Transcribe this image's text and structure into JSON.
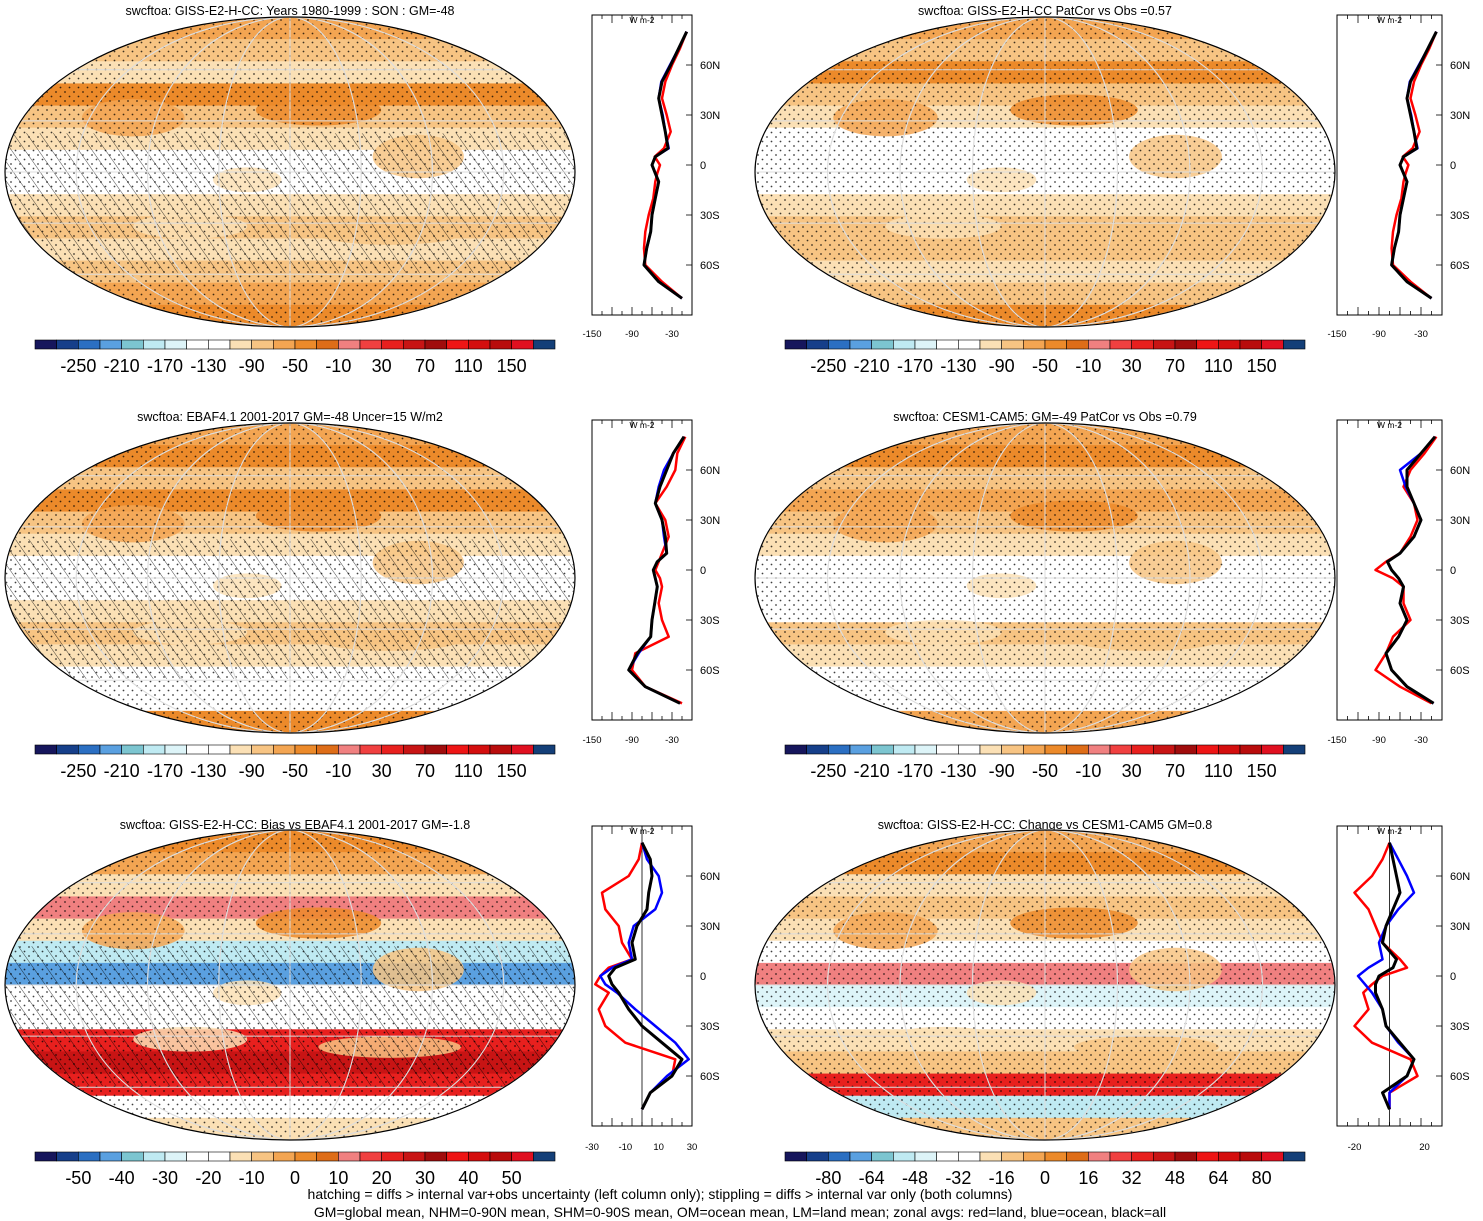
{
  "chart_data": [
    {
      "type": "heatmap",
      "title": "swcftoa: GISS-E2-H-CC: Years 1980-1999 : SON : GM=-48",
      "colorbar_labels": [
        "-250",
        "-210",
        "-170",
        "-130",
        "-90",
        "-50",
        "-10",
        "30",
        "70",
        "110",
        "150"
      ],
      "colorbar_range": [
        -250,
        150
      ],
      "hatching": true,
      "stippling": true,
      "zonal": {
        "unit": "W m-2",
        "x_ticks": [
          "-150",
          "-90",
          "-30"
        ],
        "xlim": [
          -150,
          0
        ],
        "y_ticks": [
          "60N",
          "30N",
          "0",
          "30S",
          "60S"
        ],
        "lat": [
          80,
          70,
          60,
          50,
          40,
          30,
          20,
          10,
          5,
          0,
          -5,
          -10,
          -20,
          -30,
          -40,
          -50,
          -60,
          -70,
          -80
        ],
        "series": [
          {
            "name": "land",
            "color": "#ff0000",
            "values": [
              -8,
              -18,
              -30,
              -40,
              -45,
              -38,
              -32,
              -42,
              -56,
              -48,
              -52,
              -55,
              -58,
              -65,
              -70,
              -72,
              -70,
              -45,
              -15
            ]
          },
          {
            "name": "ocean",
            "color": "#0000ff",
            "values": [
              -8,
              -20,
              -33,
              -46,
              -50,
              -44,
              -40,
              -35,
              -55,
              -60,
              -55,
              -50,
              -55,
              -60,
              -62,
              -68,
              -72,
              -50,
              -15
            ]
          },
          {
            "name": "all",
            "color": "#000000",
            "values": [
              -8,
              -20,
              -32,
              -45,
              -50,
              -45,
              -40,
              -36,
              -55,
              -60,
              -55,
              -50,
              -55,
              -60,
              -62,
              -68,
              -72,
              -50,
              -15
            ]
          }
        ]
      }
    },
    {
      "type": "heatmap",
      "title": "swcftoa: GISS-E2-H-CC PatCor vs Obs =0.57",
      "colorbar_labels": [
        "-250",
        "-210",
        "-170",
        "-130",
        "-90",
        "-50",
        "-10",
        "30",
        "70",
        "110",
        "150"
      ],
      "colorbar_range": [
        -250,
        150
      ],
      "hatching": false,
      "stippling": true,
      "zonal": {
        "unit": "W m-2",
        "x_ticks": [
          "-150",
          "-90",
          "-30"
        ],
        "xlim": [
          -150,
          0
        ],
        "y_ticks": [
          "60N",
          "30N",
          "0",
          "30S",
          "60S"
        ],
        "lat": [
          80,
          70,
          60,
          50,
          40,
          30,
          20,
          10,
          5,
          0,
          -5,
          -10,
          -20,
          -30,
          -40,
          -50,
          -60,
          -70,
          -80
        ],
        "series": [
          {
            "name": "land",
            "color": "#ff0000",
            "values": [
              -8,
              -18,
              -30,
              -40,
              -45,
              -38,
              -32,
              -42,
              -56,
              -48,
              -52,
              -55,
              -58,
              -65,
              -70,
              -72,
              -70,
              -45,
              -15
            ]
          },
          {
            "name": "ocean",
            "color": "#0000ff",
            "values": [
              -8,
              -20,
              -33,
              -46,
              -50,
              -44,
              -40,
              -35,
              -55,
              -60,
              -55,
              -50,
              -55,
              -60,
              -62,
              -68,
              -72,
              -50,
              -15
            ]
          },
          {
            "name": "all",
            "color": "#000000",
            "values": [
              -8,
              -20,
              -32,
              -45,
              -50,
              -45,
              -40,
              -36,
              -55,
              -60,
              -55,
              -50,
              -55,
              -60,
              -62,
              -68,
              -72,
              -50,
              -15
            ]
          }
        ]
      }
    },
    {
      "type": "heatmap",
      "title": "swcftoa: EBAF4.1 2001-2017 GM=-48 Uncer=15 W/m2",
      "colorbar_labels": [
        "-250",
        "-210",
        "-170",
        "-130",
        "-90",
        "-50",
        "-10",
        "30",
        "70",
        "110",
        "150"
      ],
      "colorbar_range": [
        -250,
        150
      ],
      "hatching": true,
      "stippling": true,
      "zonal": {
        "unit": "W m-2",
        "x_ticks": [
          "-150",
          "-90",
          "-30"
        ],
        "xlim": [
          -150,
          0
        ],
        "y_ticks": [
          "60N",
          "30N",
          "0",
          "30S",
          "60S"
        ],
        "lat": [
          80,
          70,
          60,
          50,
          40,
          30,
          20,
          10,
          5,
          0,
          -5,
          -10,
          -20,
          -30,
          -40,
          -50,
          -60,
          -70,
          -80
        ],
        "series": [
          {
            "name": "land",
            "color": "#ff0000",
            "values": [
              -10,
              -22,
              -25,
              -38,
              -55,
              -40,
              -35,
              -45,
              -50,
              -55,
              -48,
              -45,
              -50,
              -45,
              -35,
              -85,
              -90,
              -70,
              -15
            ]
          },
          {
            "name": "ocean",
            "color": "#0000ff",
            "values": [
              -12,
              -28,
              -42,
              -50,
              -55,
              -45,
              -42,
              -38,
              -52,
              -58,
              -55,
              -52,
              -56,
              -60,
              -62,
              -80,
              -95,
              -70,
              -18
            ]
          },
          {
            "name": "all",
            "color": "#000000",
            "values": [
              -12,
              -28,
              -38,
              -48,
              -55,
              -45,
              -40,
              -38,
              -52,
              -58,
              -55,
              -52,
              -56,
              -60,
              -62,
              -82,
              -95,
              -70,
              -18
            ]
          }
        ]
      }
    },
    {
      "type": "heatmap",
      "title": "swcftoa: CESM1-CAM5: GM=-49 PatCor vs Obs =0.79",
      "colorbar_labels": [
        "-250",
        "-210",
        "-170",
        "-130",
        "-90",
        "-50",
        "-10",
        "30",
        "70",
        "110",
        "150"
      ],
      "colorbar_range": [
        -250,
        150
      ],
      "hatching": false,
      "stippling": true,
      "zonal": {
        "unit": "W m-2",
        "x_ticks": [
          "-150",
          "-90",
          "-30"
        ],
        "xlim": [
          -150,
          0
        ],
        "y_ticks": [
          "60N",
          "30N",
          "0",
          "30S",
          "60S"
        ],
        "lat": [
          80,
          70,
          60,
          50,
          40,
          30,
          20,
          10,
          5,
          0,
          -5,
          -10,
          -20,
          -30,
          -40,
          -50,
          -60,
          -70,
          -80
        ],
        "series": [
          {
            "name": "land",
            "color": "#ff0000",
            "values": [
              -8,
              -25,
              -45,
              -55,
              -40,
              -35,
              -45,
              -60,
              -80,
              -95,
              -70,
              -55,
              -55,
              -45,
              -70,
              -80,
              -95,
              -60,
              -15
            ]
          },
          {
            "name": "ocean",
            "color": "#0000ff",
            "values": [
              -10,
              -30,
              -60,
              -52,
              -40,
              -30,
              -40,
              -60,
              -78,
              -72,
              -62,
              -55,
              -60,
              -50,
              -62,
              -80,
              -72,
              -50,
              -12
            ]
          },
          {
            "name": "all",
            "color": "#000000",
            "values": [
              -10,
              -30,
              -50,
              -50,
              -40,
              -30,
              -40,
              -60,
              -78,
              -72,
              -62,
              -55,
              -60,
              -50,
              -62,
              -80,
              -72,
              -50,
              -12
            ]
          }
        ]
      }
    },
    {
      "type": "heatmap",
      "title": "swcftoa: GISS-E2-H-CC: Bias vs EBAF4.1 2001-2017  GM=-1.8",
      "colorbar_labels": [
        "-50",
        "-40",
        "-30",
        "-20",
        "-10",
        "0",
        "10",
        "20",
        "30",
        "40",
        "50"
      ],
      "colorbar_range": [
        -50,
        50
      ],
      "hatching": true,
      "stippling": true,
      "zonal": {
        "unit": "W m-2",
        "x_ticks": [
          "-30",
          "-10",
          "10",
          "30"
        ],
        "xlim": [
          -30,
          30
        ],
        "y_ticks": [
          "60N",
          "30N",
          "0",
          "30S",
          "60S"
        ],
        "lat": [
          80,
          70,
          60,
          50,
          40,
          30,
          20,
          10,
          5,
          0,
          -5,
          -10,
          -20,
          -30,
          -40,
          -50,
          -60,
          -70,
          -80
        ],
        "series": [
          {
            "name": "land",
            "color": "#ff0000",
            "values": [
              0,
              -2,
              -8,
              -24,
              -22,
              -14,
              -12,
              -6,
              -20,
              -25,
              -28,
              -20,
              -26,
              -22,
              -10,
              20,
              18,
              5,
              0
            ]
          },
          {
            "name": "ocean",
            "color": "#0000ff",
            "values": [
              0,
              3,
              10,
              12,
              8,
              -5,
              -8,
              -6,
              -18,
              -25,
              -22,
              -15,
              -4,
              8,
              20,
              28,
              15,
              5,
              0
            ]
          },
          {
            "name": "all",
            "color": "#000000",
            "values": [
              0,
              5,
              6,
              4,
              3,
              -3,
              -6,
              -4,
              -16,
              -20,
              -18,
              -14,
              -8,
              0,
              12,
              24,
              18,
              5,
              0
            ]
          }
        ]
      }
    },
    {
      "type": "heatmap",
      "title": "swcftoa: GISS-E2-H-CC: Change vs CESM1-CAM5 GM=0.8",
      "colorbar_labels": [
        "-80",
        "-64",
        "-48",
        "-32",
        "-16",
        "0",
        "16",
        "32",
        "48",
        "64",
        "80"
      ],
      "colorbar_range": [
        -80,
        80
      ],
      "hatching": false,
      "stippling": true,
      "zonal": {
        "unit": "W m-2",
        "x_ticks": [
          "-20",
          "20"
        ],
        "xlim": [
          -30,
          30
        ],
        "y_ticks": [
          "60N",
          "30N",
          "0",
          "30S",
          "60S"
        ],
        "lat": [
          80,
          70,
          60,
          50,
          40,
          30,
          20,
          10,
          5,
          0,
          -5,
          -10,
          -20,
          -30,
          -40,
          -50,
          -60,
          -70,
          -80
        ],
        "series": [
          {
            "name": "land",
            "color": "#ff0000",
            "values": [
              0,
              -4,
              -10,
              -20,
              -12,
              -8,
              -4,
              6,
              10,
              -4,
              -10,
              -15,
              -12,
              -20,
              -10,
              12,
              16,
              0,
              0
            ]
          },
          {
            "name": "ocean",
            "color": "#0000ff",
            "values": [
              0,
              5,
              10,
              14,
              5,
              -2,
              -6,
              -4,
              -12,
              -18,
              -14,
              -10,
              -4,
              -2,
              5,
              14,
              10,
              0,
              0
            ]
          },
          {
            "name": "all",
            "color": "#000000",
            "values": [
              0,
              2,
              4,
              6,
              2,
              -2,
              -4,
              4,
              2,
              -6,
              -8,
              -8,
              -4,
              -2,
              6,
              14,
              10,
              -4,
              0
            ]
          }
        ]
      }
    }
  ],
  "footer": {
    "line1": "hatching = diffs > internal var+obs uncertainty (left column only); stippling = diffs > internal var only (both columns)",
    "line2": "GM=global mean, NHM=0-90N mean, SHM=0-90S mean, OM=ocean mean, LM=land mean; zonal avgs: red=land, blue=ocean, black=all"
  },
  "colors": {
    "map_palette": [
      "#16165c",
      "#163f8a",
      "#2b6fc2",
      "#5aa0e0",
      "#7cc5d0",
      "#bfeaf2",
      "#ddf4f8",
      "#ffffff",
      "#ffffff",
      "#fbe0b5",
      "#f7c483",
      "#f3a552",
      "#ec8a2a",
      "#de6d18",
      "#f08080",
      "#f04040",
      "#e8201e",
      "#c81414",
      "#a00c0c",
      "#ee1515",
      "#d40e0e",
      "#b90c0c",
      "#e01020",
      "#143f78"
    ],
    "land": "#ff0000",
    "ocean": "#0000ff",
    "all": "#000000"
  }
}
